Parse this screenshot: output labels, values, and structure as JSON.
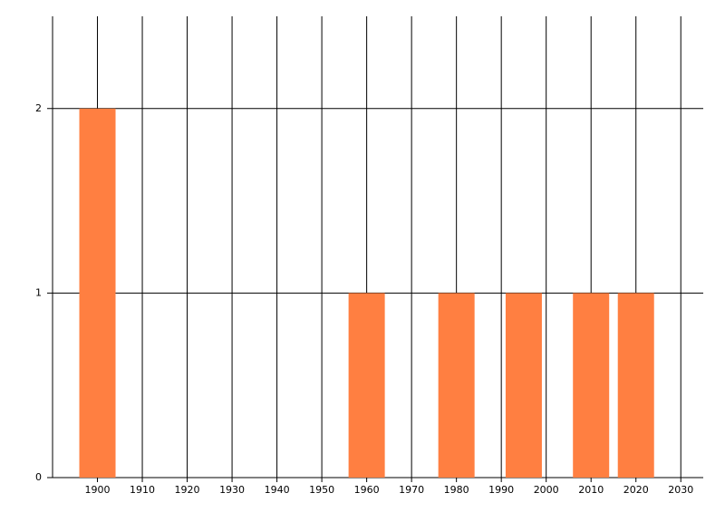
{
  "chart_data": {
    "type": "bar",
    "x": [
      1900,
      1960,
      1980,
      1995,
      2010,
      2020
    ],
    "values": [
      2,
      1,
      1,
      1,
      1,
      1
    ],
    "color": "#ff7f41",
    "xlim": [
      1890,
      2035
    ],
    "xticks": [
      1900,
      1910,
      1920,
      1930,
      1940,
      1950,
      1960,
      1970,
      1980,
      1990,
      2000,
      2010,
      2020,
      2030
    ],
    "ylim": [
      0,
      2.5
    ],
    "yticks": [
      0,
      1,
      2
    ],
    "grid": true
  }
}
